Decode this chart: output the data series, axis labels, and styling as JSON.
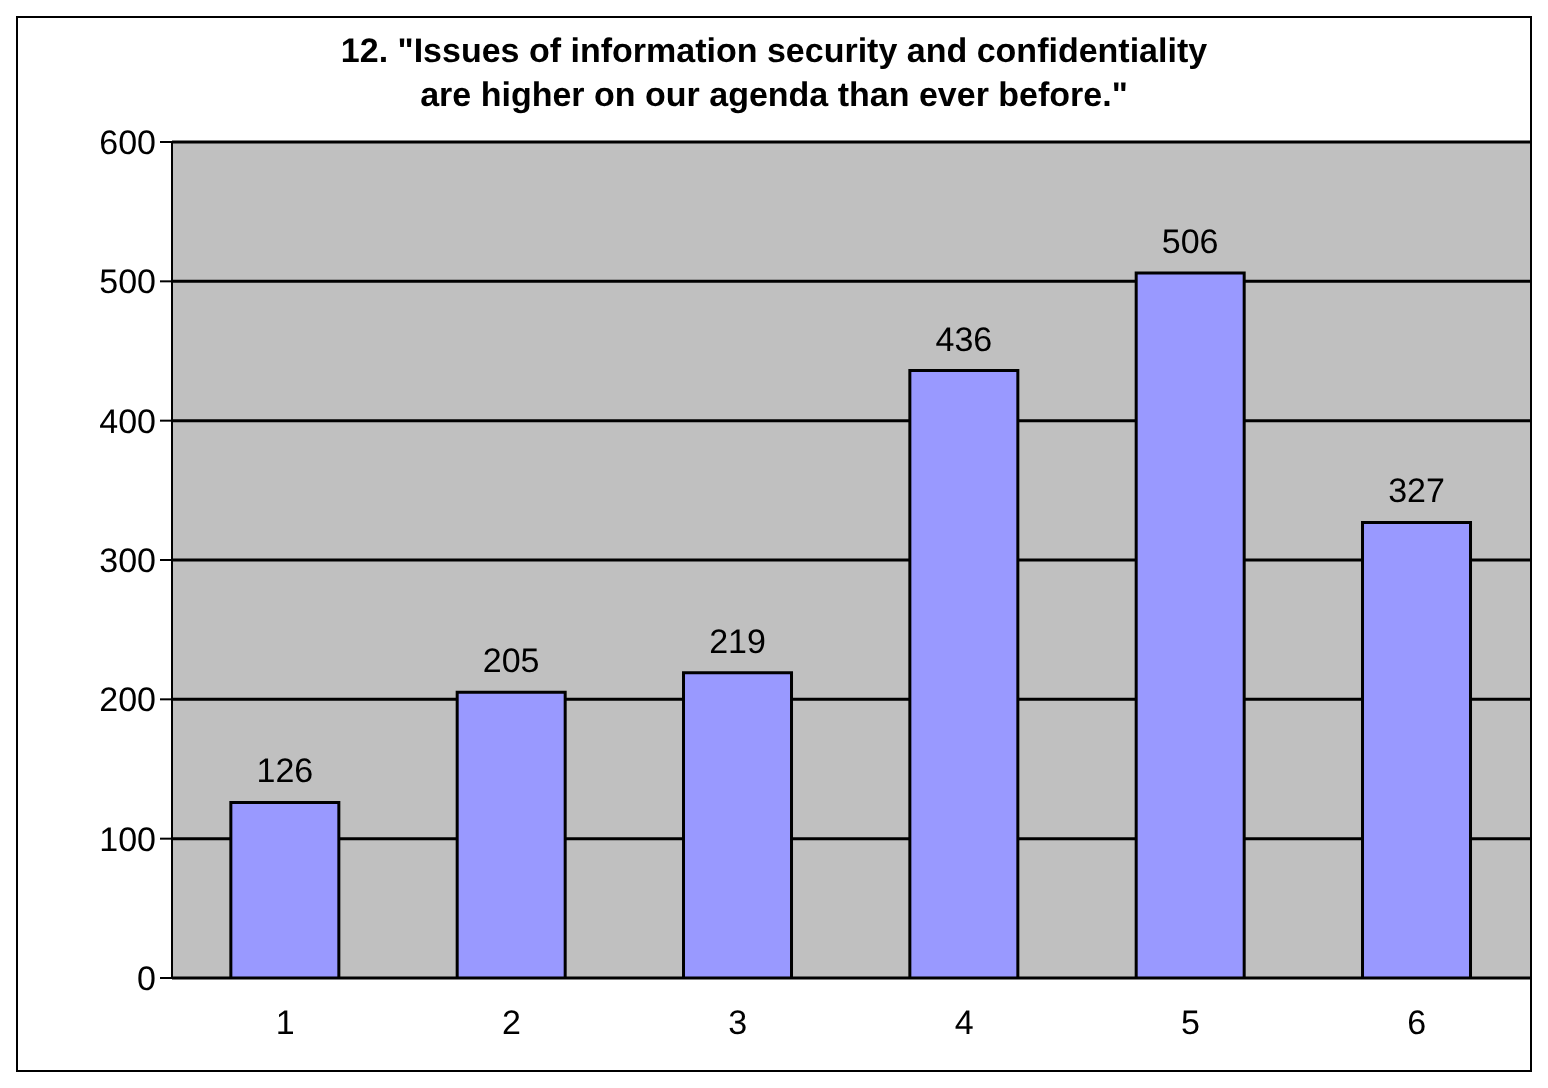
{
  "chart_data": {
    "type": "bar",
    "title": "12. \"Issues of information security and confidentiality\nare higher on our agenda than ever before.\"",
    "categories": [
      "1",
      "2",
      "3",
      "4",
      "5",
      "6"
    ],
    "values": [
      126,
      205,
      219,
      436,
      506,
      327
    ],
    "color": "#9999ff",
    "ylim": [
      0,
      600
    ],
    "yticks": [
      0,
      100,
      200,
      300,
      400,
      500,
      600
    ],
    "grid": "y",
    "data_labels": true
  }
}
